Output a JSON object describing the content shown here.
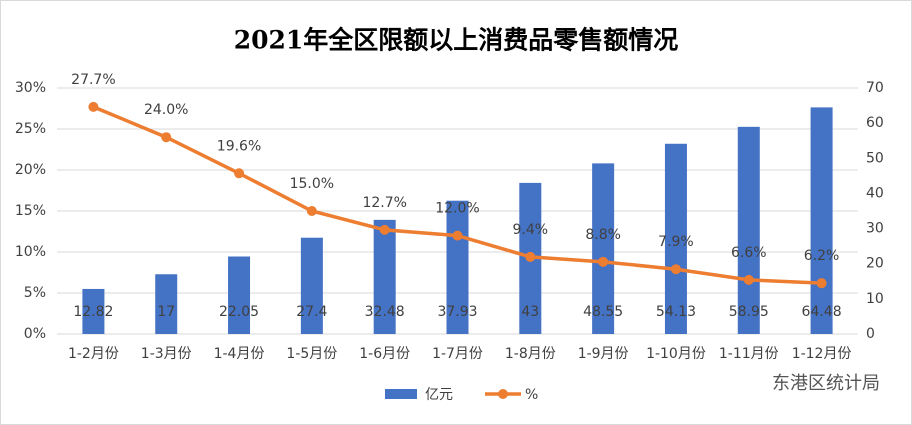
{
  "chart_data": {
    "type": "bar-line",
    "title": "2021年全区限额以上消费品零售额情况",
    "categories": [
      "1-2月份",
      "1-3月份",
      "1-4月份",
      "1-5月份",
      "1-6月份",
      "1-7月份",
      "1-8月份",
      "1-9月份",
      "1-10月份",
      "1-11月份",
      "1-12月份"
    ],
    "series": [
      {
        "name": "亿元",
        "type": "bar",
        "axis": "y2",
        "color": "#4472c4",
        "values": [
          12.82,
          17,
          22.05,
          27.4,
          32.48,
          37.93,
          43,
          48.55,
          54.13,
          58.95,
          64.48
        ]
      },
      {
        "name": "%",
        "type": "line",
        "axis": "y",
        "color": "#ed7d31",
        "values": [
          27.7,
          24.0,
          19.6,
          15.0,
          12.7,
          12.0,
          9.4,
          8.8,
          7.9,
          6.6,
          6.2
        ],
        "value_labels": [
          "27.7%",
          "24.0%",
          "19.6%",
          "15.0%",
          "12.7%",
          "12.0%",
          "9.4%",
          "8.8%",
          "7.9%",
          "6.6%",
          "6.2%"
        ]
      }
    ],
    "ylim": [
      0,
      30
    ],
    "yticks": [
      {
        "value": 0,
        "label": "0%"
      },
      {
        "value": 5,
        "label": "5%"
      },
      {
        "value": 10,
        "label": "10%"
      },
      {
        "value": 15,
        "label": "15%"
      },
      {
        "value": 20,
        "label": "20%"
      },
      {
        "value": 25,
        "label": "25%"
      },
      {
        "value": 30,
        "label": "30%"
      }
    ],
    "y2lim": [
      0,
      70
    ],
    "y2ticks": [
      0,
      10,
      20,
      30,
      40,
      50,
      60,
      70
    ],
    "grid": true,
    "legend": "bottom",
    "watermark": "东港区统计局"
  }
}
